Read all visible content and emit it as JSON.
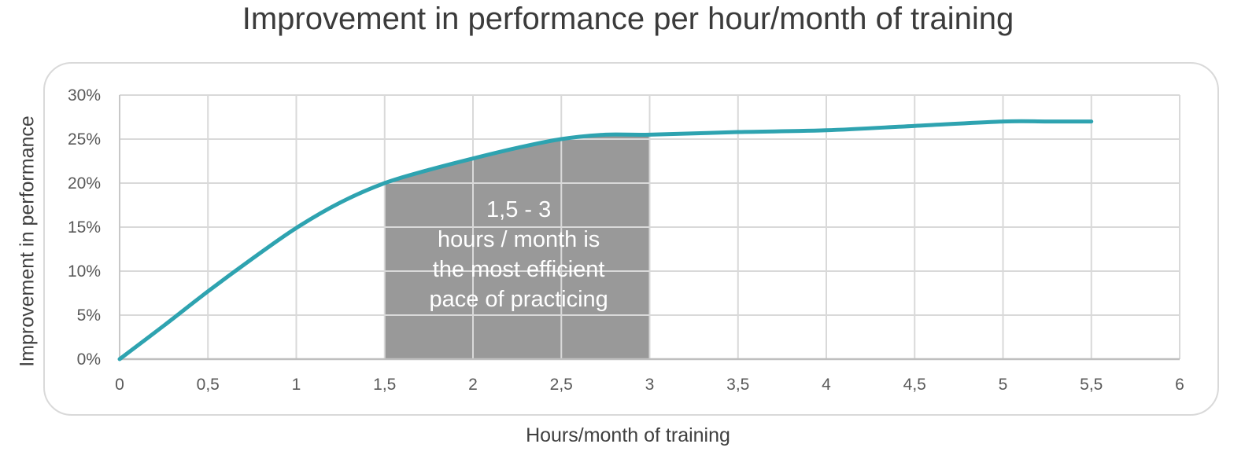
{
  "chart_data": {
    "type": "line",
    "title": "Improvement in performance per hour/month of training",
    "xlabel": "Hours/month of training",
    "ylabel": "Improvement in performance",
    "xlim": [
      0,
      6
    ],
    "ylim": [
      0,
      0.3
    ],
    "x_ticks": [
      "0",
      "0,5",
      "1",
      "1,5",
      "2",
      "2,5",
      "3",
      "3,5",
      "4",
      "4,5",
      "5",
      "5,5",
      "6"
    ],
    "y_ticks": [
      "0%",
      "5%",
      "10%",
      "15%",
      "20%",
      "25%",
      "30%"
    ],
    "grid": true,
    "series": [
      {
        "x": [
          0,
          0.25,
          0.5,
          0.75,
          1,
          1.25,
          1.5,
          1.75,
          2,
          2.25,
          2.5,
          2.75,
          3,
          3.5,
          4,
          4.5,
          5,
          5.25,
          5.5
        ],
        "y": [
          0,
          0.038,
          0.077,
          0.114,
          0.149,
          0.178,
          0.2,
          0.215,
          0.228,
          0.24,
          0.25,
          0.255,
          0.255,
          0.258,
          0.26,
          0.265,
          0.27,
          0.27,
          0.27
        ]
      }
    ],
    "highlight_region": {
      "x_start": 1.5,
      "x_end": 3,
      "lines": [
        "1,5 - 3",
        "hours / month is",
        "the most efficient",
        "pace of practicing"
      ]
    },
    "colors": {
      "line": "#2ea3b0",
      "highlight": "#999999",
      "grid": "#d9d9d9",
      "frame": "#d9d9d9"
    }
  }
}
